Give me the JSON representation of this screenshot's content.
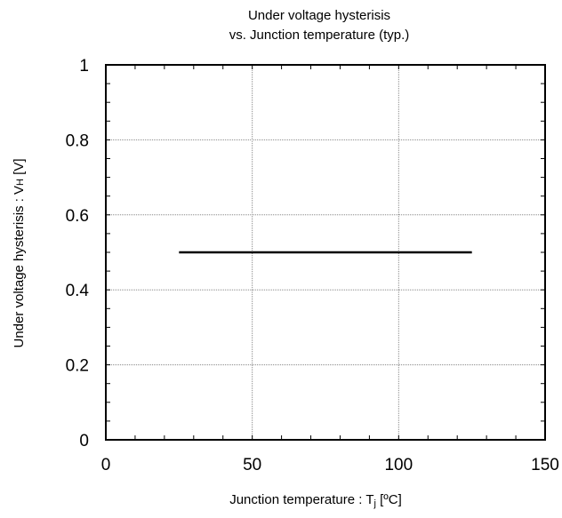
{
  "chart_data": {
    "type": "line",
    "title_lines": [
      "Under voltage hysterisis",
      "vs. Junction temperature (typ.)"
    ],
    "xlabel": {
      "main": "Junction temperature : T",
      "sub": "j",
      "suffix": " [ºC]"
    },
    "ylabel": {
      "main": "Under voltage hysterisis : V",
      "sub": "H",
      "suffix": " [V]"
    },
    "xlim": [
      0,
      150
    ],
    "ylim": [
      0,
      1
    ],
    "xticks": [
      0,
      50,
      100,
      150
    ],
    "xtick_labels": [
      "0",
      "50",
      "100",
      "150"
    ],
    "yticks": [
      0,
      0.2,
      0.4,
      0.6,
      0.8,
      1
    ],
    "ytick_labels": [
      "0",
      "0.2",
      "0.4",
      "0.6",
      "0.8",
      "1"
    ],
    "x_minor_step": 10,
    "y_minor_step": 0.05,
    "grid": true,
    "series": [
      {
        "x": [
          25,
          125
        ],
        "y": [
          0.5,
          0.5
        ]
      }
    ],
    "colors": {
      "line": "#000000",
      "grid": "#888888",
      "frame": "#000000"
    }
  }
}
